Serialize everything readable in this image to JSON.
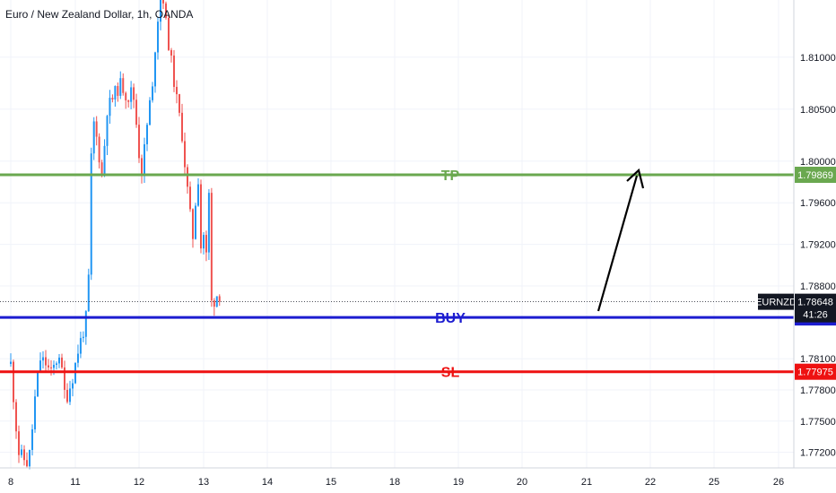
{
  "chart_data": {
    "type": "candlestick",
    "title": "Euro / New Zealand Dollar, 1h, OANDA",
    "symbol": "EURNZD",
    "x_ticks": [
      "8",
      "11",
      "12",
      "13",
      "14",
      "15",
      "18",
      "19",
      "20",
      "21",
      "22",
      "25",
      "26"
    ],
    "y_ticks": [
      "1.81000",
      "1.80500",
      "1.80000",
      "1.79600",
      "1.79200",
      "1.78800",
      "1.78100",
      "1.77800",
      "1.77500",
      "1.77200"
    ],
    "y_tick_values": [
      1.81,
      1.805,
      1.8,
      1.796,
      1.792,
      1.788,
      1.781,
      1.778,
      1.775,
      1.772
    ],
    "ylim": [
      1.7705,
      1.8155
    ],
    "current_price": "1.78648",
    "countdown": "41:26",
    "up_color": "#2196f3",
    "down_color": "#ef5350",
    "levels": [
      {
        "name": "TP",
        "price": "1.79869",
        "value": 1.79869,
        "color": "#6aa84f"
      },
      {
        "name": "BUY",
        "price": "1.78497",
        "value": 1.78497,
        "color": "#1c1cd0"
      },
      {
        "name": "SL",
        "price": "1.77975",
        "value": 1.77975,
        "color": "#ee1111"
      }
    ],
    "price_path": [
      {
        "t": 0,
        "price": 1.7805
      },
      {
        "t": 0.06,
        "price": 1.776
      },
      {
        "t": 0.12,
        "price": 1.772
      },
      {
        "t": 0.25,
        "price": 1.771
      },
      {
        "t": 0.3,
        "price": 1.772
      },
      {
        "t": 0.38,
        "price": 1.7775
      },
      {
        "t": 0.45,
        "price": 1.781
      },
      {
        "t": 0.55,
        "price": 1.7805
      },
      {
        "t": 0.62,
        "price": 1.7795
      },
      {
        "t": 0.75,
        "price": 1.7815
      },
      {
        "t": 0.85,
        "price": 1.777
      },
      {
        "t": 0.95,
        "price": 1.779
      },
      {
        "t": 1.05,
        "price": 1.782
      },
      {
        "t": 1.14,
        "price": 1.784
      },
      {
        "t": 1.2,
        "price": 1.786
      },
      {
        "t": 1.24,
        "price": 1.799
      },
      {
        "t": 1.28,
        "price": 1.804
      },
      {
        "t": 1.34,
        "price": 1.802
      },
      {
        "t": 1.42,
        "price": 1.7985
      },
      {
        "t": 1.5,
        "price": 1.805
      },
      {
        "t": 1.62,
        "price": 1.8065
      },
      {
        "t": 1.72,
        "price": 1.8075
      },
      {
        "t": 1.82,
        "price": 1.806
      },
      {
        "t": 1.9,
        "price": 1.807
      },
      {
        "t": 1.97,
        "price": 1.803
      },
      {
        "t": 2.03,
        "price": 1.7985
      },
      {
        "t": 2.1,
        "price": 1.802
      },
      {
        "t": 2.16,
        "price": 1.8055
      },
      {
        "t": 2.2,
        "price": 1.806
      },
      {
        "t": 2.26,
        "price": 1.812
      },
      {
        "t": 2.32,
        "price": 1.8155
      },
      {
        "t": 2.36,
        "price": 1.8165
      },
      {
        "t": 2.42,
        "price": 1.813
      },
      {
        "t": 2.5,
        "price": 1.8095
      },
      {
        "t": 2.58,
        "price": 1.806
      },
      {
        "t": 2.66,
        "price": 1.803
      },
      {
        "t": 2.72,
        "price": 1.799
      },
      {
        "t": 2.77,
        "price": 1.796
      },
      {
        "t": 2.83,
        "price": 1.7925
      },
      {
        "t": 2.88,
        "price": 1.7965
      },
      {
        "t": 2.92,
        "price": 1.7985
      },
      {
        "t": 2.96,
        "price": 1.7915
      },
      {
        "t": 3.0,
        "price": 1.793
      },
      {
        "t": 3.05,
        "price": 1.7905
      },
      {
        "t": 3.09,
        "price": 1.798
      },
      {
        "t": 3.11,
        "price": 1.787
      },
      {
        "t": 3.15,
        "price": 1.7855
      },
      {
        "t": 3.18,
        "price": 1.7875
      },
      {
        "t": 3.22,
        "price": 1.787
      },
      {
        "t": 3.26,
        "price": 1.7865
      }
    ]
  }
}
